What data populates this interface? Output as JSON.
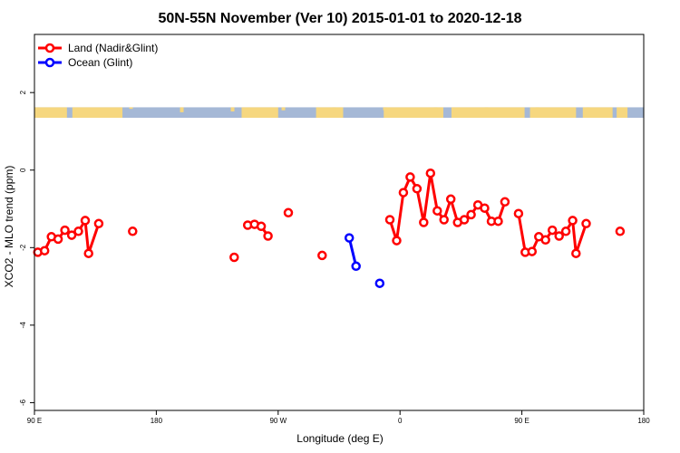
{
  "chart_data": {
    "type": "line",
    "title": "50N-55N November (Ver 10)   2015-01-01 to 2020-12-18",
    "xlabel": "Longitude (deg E)",
    "ylabel": "XCO2 - MLO trend (ppm)",
    "xlim": [
      90,
      540
    ],
    "ylim": [
      -6.2,
      3.5
    ],
    "x_ticks": [
      {
        "value": 90,
        "label": "90 E"
      },
      {
        "value": 180,
        "label": "180"
      },
      {
        "value": 270,
        "label": "90 W"
      },
      {
        "value": 360,
        "label": "0"
      },
      {
        "value": 450,
        "label": "90 E"
      },
      {
        "value": 540,
        "label": "180"
      }
    ],
    "y_ticks": [
      {
        "value": 2,
        "label": "2"
      },
      {
        "value": 0,
        "label": "0"
      },
      {
        "value": -2,
        "label": "-2"
      },
      {
        "value": -4,
        "label": "-4"
      },
      {
        "value": -6,
        "label": "-6"
      }
    ],
    "grid": false,
    "legend_position": "top-left",
    "land_band": {
      "ymin": 1.35,
      "ymax": 1.62,
      "ocean_color": "#a5b8d6",
      "land_color": "#f6d77f"
    },
    "series": [
      {
        "name": "Land (Nadir&Glint)",
        "color": "#ff0000",
        "segments": [
          [
            [
              92.5,
              -2.12
            ],
            [
              97.5,
              -2.08
            ],
            [
              102.5,
              -1.72
            ],
            [
              107.5,
              -1.78
            ],
            [
              112.5,
              -1.55
            ],
            [
              117.5,
              -1.68
            ],
            [
              122.5,
              -1.58
            ],
            [
              127.5,
              -1.3
            ],
            [
              130,
              -2.15
            ],
            [
              137.5,
              -1.38
            ]
          ],
          [
            [
              162.5,
              -1.58
            ]
          ],
          [
            [
              237.5,
              -2.25
            ]
          ],
          [
            [
              247.5,
              -1.42
            ],
            [
              252.5,
              -1.4
            ],
            [
              257.5,
              -1.45
            ],
            [
              262.5,
              -1.7
            ]
          ],
          [
            [
              277.5,
              -1.1
            ]
          ],
          [
            [
              302.5,
              -2.2
            ]
          ],
          [
            [
              352.5,
              -1.28
            ],
            [
              357.5,
              -1.82
            ],
            [
              362.5,
              -0.58
            ],
            [
              367.5,
              -0.18
            ],
            [
              372.5,
              -0.48
            ],
            [
              377.5,
              -1.35
            ],
            [
              382.5,
              -0.08
            ],
            [
              387.5,
              -1.05
            ],
            [
              392.5,
              -1.28
            ],
            [
              397.5,
              -0.75
            ],
            [
              402.5,
              -1.35
            ],
            [
              407.5,
              -1.28
            ],
            [
              412.5,
              -1.15
            ],
            [
              417.5,
              -0.9
            ],
            [
              422.5,
              -0.98
            ],
            [
              427.5,
              -1.32
            ],
            [
              432.5,
              -1.32
            ],
            [
              437.5,
              -0.82
            ]
          ],
          [
            [
              447.5,
              -1.12
            ],
            [
              452.5,
              -2.12
            ],
            [
              457.5,
              -2.1
            ],
            [
              462.5,
              -1.72
            ],
            [
              467.5,
              -1.8
            ],
            [
              472.5,
              -1.55
            ],
            [
              477.5,
              -1.7
            ],
            [
              482.5,
              -1.58
            ],
            [
              487.5,
              -1.3
            ],
            [
              490,
              -2.15
            ],
            [
              497.5,
              -1.38
            ]
          ],
          [
            [
              522.5,
              -1.58
            ]
          ]
        ]
      },
      {
        "name": "Ocean (Glint)",
        "color": "#0000ff",
        "segments": [
          [
            [
              322.5,
              -1.75
            ],
            [
              327.5,
              -2.48
            ]
          ],
          [
            [
              345,
              -2.92
            ]
          ]
        ]
      }
    ]
  }
}
